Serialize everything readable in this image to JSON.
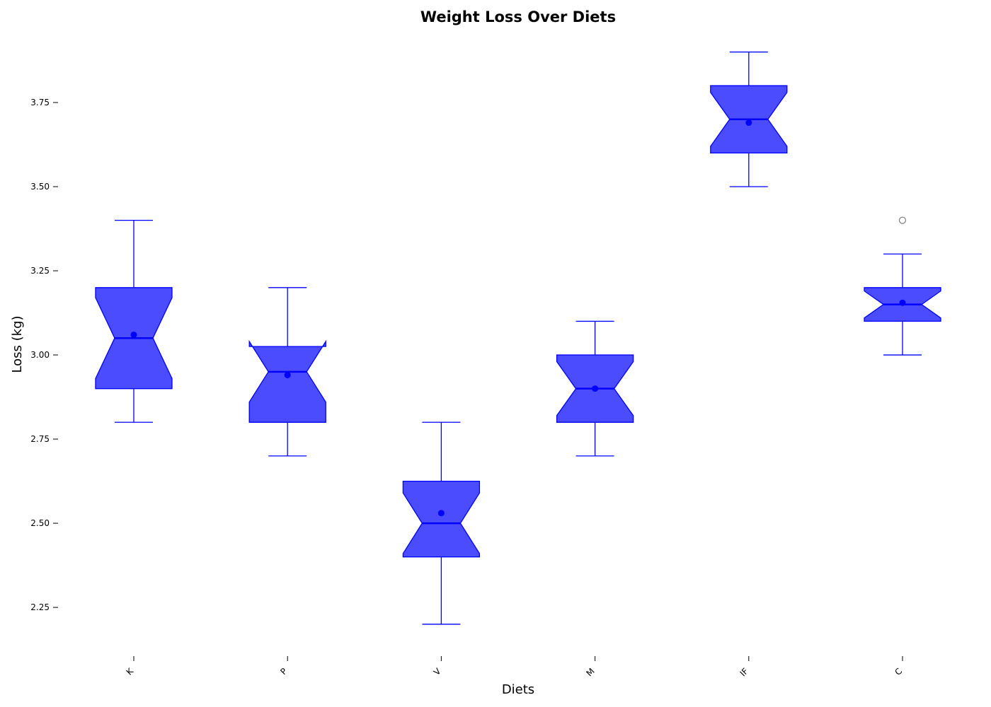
{
  "chart_data": {
    "type": "box",
    "title": "Weight Loss Over Diets",
    "xlabel": "Diets",
    "ylabel": "Loss (kg)",
    "ylim": [
      2.12,
      3.96
    ],
    "yticks": [
      2.25,
      2.5,
      2.75,
      3.0,
      3.25,
      3.5,
      3.75
    ],
    "ytick_labels": [
      "2.25",
      "2.50",
      "2.75",
      "3.00",
      "3.25",
      "3.50",
      "3.75"
    ],
    "categories": [
      "K",
      "P",
      "V",
      "M",
      "IF",
      "C"
    ],
    "notched": true,
    "grid": false,
    "legend": "none",
    "box_color": "#0000ff",
    "box_fill_opacity": 0.7,
    "outlier_color": "#808080",
    "boxes": [
      {
        "label": "K",
        "whisker_low": 2.8,
        "q1": 2.9,
        "median": 3.05,
        "q3": 3.2,
        "whisker_high": 3.4,
        "notch_low": 2.93,
        "notch_high": 3.17,
        "mean": 3.06,
        "outliers": []
      },
      {
        "label": "P",
        "whisker_low": 2.7,
        "q1": 2.8,
        "median": 2.95,
        "q3": 3.025,
        "whisker_high": 3.2,
        "notch_low": 2.86,
        "notch_high": 3.04,
        "mean": 2.94,
        "outliers": []
      },
      {
        "label": "V",
        "whisker_low": 2.2,
        "q1": 2.4,
        "median": 2.5,
        "q3": 2.625,
        "whisker_high": 2.8,
        "notch_low": 2.41,
        "notch_high": 2.59,
        "mean": 2.53,
        "outliers": []
      },
      {
        "label": "M",
        "whisker_low": 2.7,
        "q1": 2.8,
        "median": 2.9,
        "q3": 3.0,
        "whisker_high": 3.1,
        "notch_low": 2.82,
        "notch_high": 2.98,
        "mean": 2.9,
        "outliers": []
      },
      {
        "label": "IF",
        "whisker_low": 3.5,
        "q1": 3.6,
        "median": 3.7,
        "q3": 3.8,
        "whisker_high": 3.9,
        "notch_low": 3.62,
        "notch_high": 3.78,
        "mean": 3.69,
        "outliers": []
      },
      {
        "label": "C",
        "whisker_low": 3.0,
        "q1": 3.1,
        "median": 3.15,
        "q3": 3.2,
        "whisker_high": 3.3,
        "notch_low": 3.11,
        "notch_high": 3.19,
        "mean": 3.155,
        "outliers": [
          3.4
        ]
      }
    ]
  }
}
